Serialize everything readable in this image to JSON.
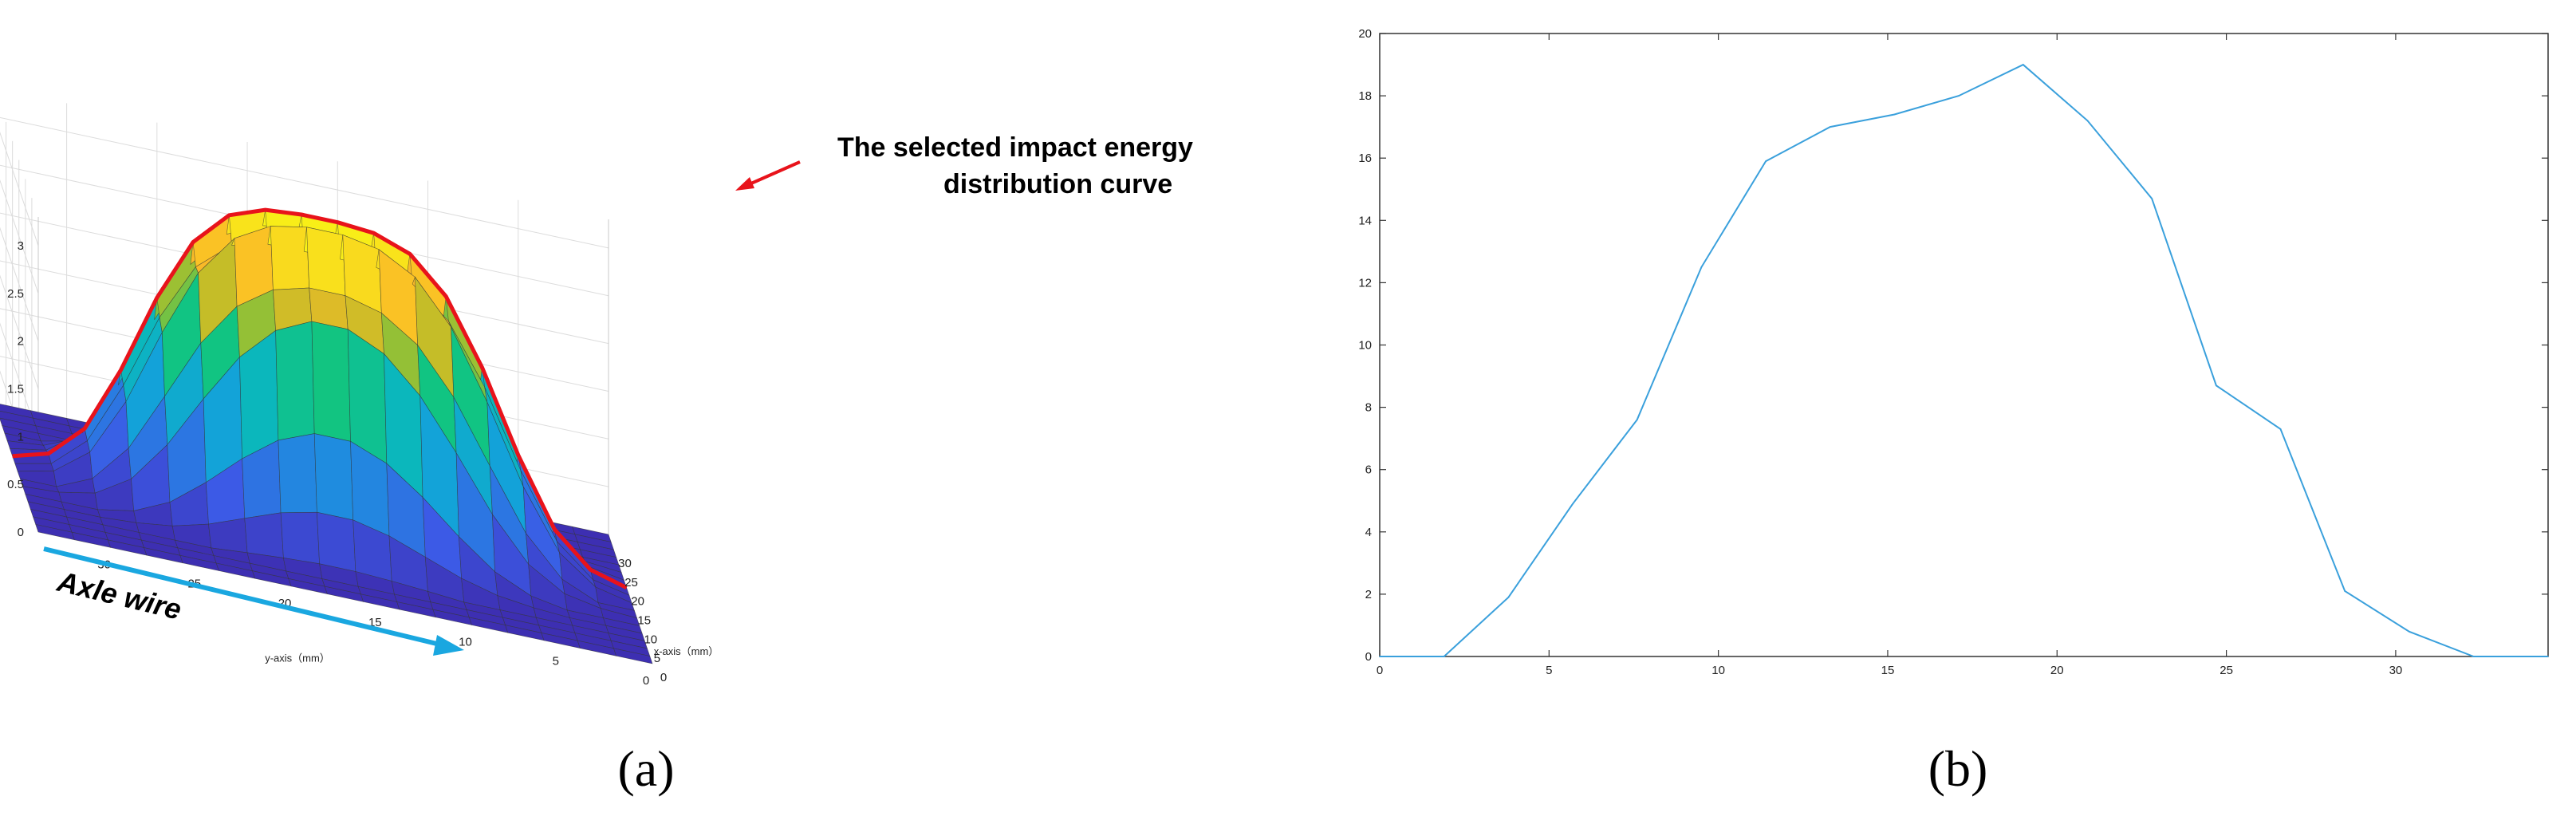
{
  "chart_data": [
    {
      "panel": "(a)",
      "type": "surface",
      "x_axis_label": "x-axis（mm）",
      "y_axis_label": "y-axis（mm）",
      "x_ticks": [
        "0",
        "5",
        "10",
        "15",
        "20",
        "25",
        "30"
      ],
      "y_ticks": [
        "0",
        "5",
        "10",
        "15",
        "20",
        "25",
        "30"
      ],
      "z_ticks": [
        "0",
        "0.5",
        "1",
        "1.5",
        "2",
        "2.5",
        "3"
      ],
      "zlim": [
        0,
        3.3
      ],
      "xlim": [
        0,
        34
      ],
      "ylim": [
        0,
        34
      ],
      "annotation": [
        "The selected impact energy",
        "distribution curve"
      ],
      "axle_label": "Axle wire",
      "colors": {
        "selected_curve": "#e8131b",
        "axle_arrow": "#1aa7e0",
        "base": "#3d2fb2"
      }
    },
    {
      "panel": "(b)",
      "type": "line",
      "xlim": [
        0,
        34.5
      ],
      "ylim": [
        0,
        20
      ],
      "x_ticks": [
        "0",
        "5",
        "10",
        "15",
        "20",
        "25",
        "30"
      ],
      "y_ticks": [
        "0",
        "2",
        "4",
        "6",
        "8",
        "10",
        "12",
        "14",
        "16",
        "18",
        "20"
      ],
      "series": [
        {
          "color": "#3aa0dc",
          "x": [
            0,
            1.9,
            3.8,
            5.7,
            7.6,
            9.5,
            11.4,
            13.3,
            15.2,
            17.1,
            19.0,
            20.9,
            22.8,
            24.7,
            26.6,
            28.5,
            30.4,
            32.3,
            34.5
          ],
          "y": [
            0,
            0,
            1.9,
            4.9,
            7.6,
            12.5,
            15.9,
            17.0,
            17.4,
            18.0,
            19.0,
            17.2,
            14.7,
            8.7,
            7.3,
            2.1,
            0.8,
            0,
            0
          ]
        }
      ]
    }
  ],
  "labels": {
    "panel_a": "(a)",
    "panel_b": "(b)"
  }
}
